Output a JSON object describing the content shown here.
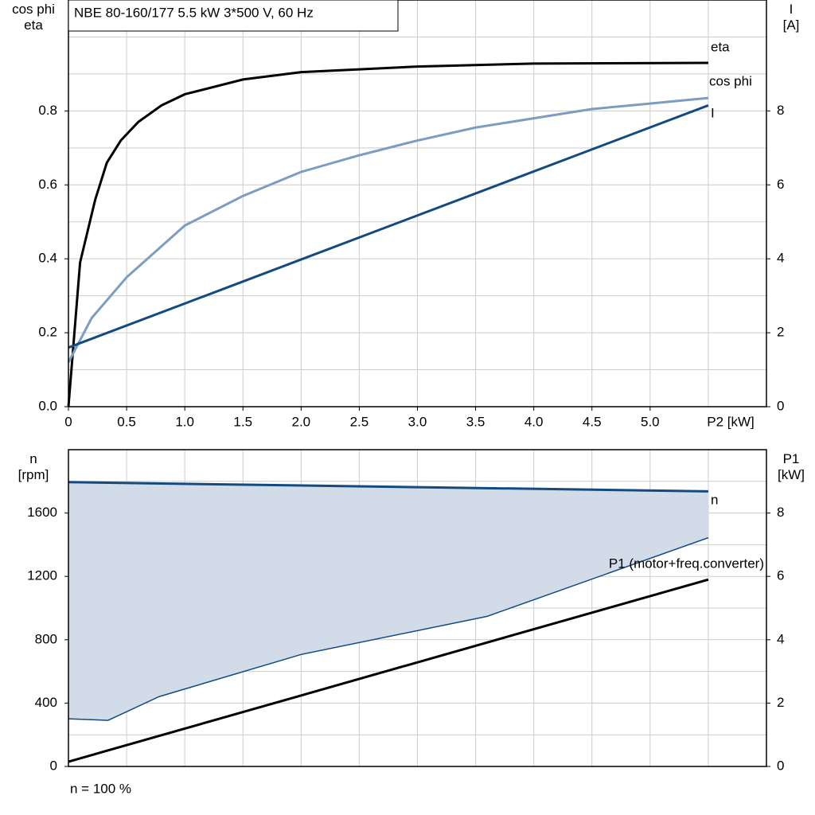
{
  "chart_data": [
    {
      "type": "line",
      "title": "NBE 80-160/177   5.5 kW   3*500 V, 60 Hz",
      "y_label": "cos phi\neta",
      "y2_label": "I\n[A]",
      "x_label": "P2 [kW]",
      "xlim": [
        0,
        6
      ],
      "ylim": [
        0,
        1.1
      ],
      "y2lim": [
        0,
        11
      ],
      "xticks": [
        0,
        0.5,
        {
          "value": 1,
          "label": "1.0"
        },
        1.5,
        {
          "value": 2,
          "label": "2.0"
        },
        2.5,
        {
          "value": 3,
          "label": "3.0"
        },
        3.5,
        {
          "value": 4,
          "label": "4.0"
        },
        4.5,
        {
          "value": 5,
          "label": "5.0"
        }
      ],
      "yticks": [
        {
          "value": 0,
          "label": "0.0"
        },
        0.2,
        0.4,
        0.6,
        0.8
      ],
      "y2ticks": [
        0,
        2,
        4,
        6,
        8
      ],
      "x_grid": [
        0.5,
        1,
        1.5,
        2,
        2.5,
        3,
        3.5,
        4,
        4.5,
        5,
        5.5
      ],
      "y_grid": [
        0.1,
        0.2,
        0.3,
        0.4,
        0.5,
        0.6,
        0.7,
        0.8,
        0.9,
        1.0
      ],
      "grid": true,
      "series": [
        {
          "name": "eta",
          "color": "#000000",
          "x": [
            0,
            0.1,
            0.23,
            0.33,
            0.45,
            0.6,
            0.8,
            1.0,
            1.5,
            2.0,
            3.0,
            4.0,
            5.5
          ],
          "values": [
            0,
            0.39,
            0.56,
            0.66,
            0.72,
            0.77,
            0.815,
            0.845,
            0.885,
            0.905,
            0.92,
            0.928,
            0.93
          ]
        },
        {
          "name": "cos phi",
          "color": "#7b9dc0",
          "x": [
            0,
            0.2,
            0.5,
            1.0,
            1.5,
            2.0,
            2.5,
            3.0,
            3.5,
            4.0,
            4.5,
            5.0,
            5.5
          ],
          "values": [
            0.12,
            0.24,
            0.35,
            0.49,
            0.57,
            0.635,
            0.68,
            0.72,
            0.755,
            0.78,
            0.805,
            0.82,
            0.835
          ]
        },
        {
          "name": "I",
          "color": "#134b80",
          "axis": "y2",
          "x": [
            0,
            5.5
          ],
          "values": [
            1.6,
            8.15
          ]
        }
      ]
    },
    {
      "type": "line",
      "y_label": "n\n[rpm]",
      "y2_label": "P1\n[kW]",
      "annotation": "n = 100 %",
      "xlim": [
        0,
        6
      ],
      "ylim": [
        0,
        2000
      ],
      "y2lim": [
        0,
        10
      ],
      "yticks": [
        0,
        400,
        800,
        1200,
        1600
      ],
      "y2ticks": [
        0,
        2,
        4,
        6,
        8
      ],
      "x_grid": [
        0.5,
        1,
        1.5,
        2,
        2.5,
        3,
        3.5,
        4,
        4.5,
        5,
        5.5
      ],
      "y_grid": [
        200,
        400,
        600,
        800,
        1000,
        1200,
        1400,
        1600,
        1800
      ],
      "grid": true,
      "fill_between": [
        0,
        1
      ],
      "fill_color": "#d1dce8",
      "series": [
        {
          "name": "n",
          "color": "#134b80",
          "x": [
            0,
            5.5
          ],
          "values": [
            1795,
            1737
          ]
        },
        {
          "color": "#134b80",
          "x": [
            0,
            0.34,
            0.78,
            2.0,
            3.6,
            5.5
          ],
          "values": [
            301,
            291,
            441,
            707,
            948,
            1444
          ]
        },
        {
          "name": "P1 (motor+freq.converter)",
          "color": "#000000",
          "axis": "y2",
          "x": [
            0,
            5.5
          ],
          "values": [
            0.15,
            5.9
          ]
        }
      ]
    }
  ]
}
